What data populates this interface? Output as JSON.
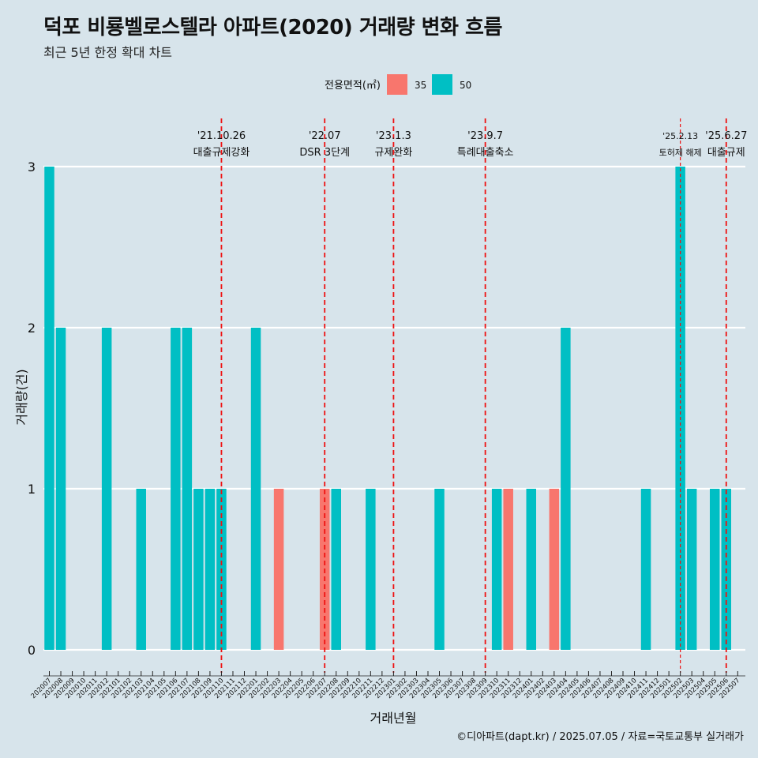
{
  "title": "덕포 비룡벨로스텔라 아파트(2020) 거래량 변화 흐름",
  "subtitle": "최근 5년 한정 확대 차트",
  "caption": "©디아파트(dapt.kr) / 2025.07.05 / 자료=국토교통부 실거래가",
  "colors": {
    "s35": "#f8766d",
    "s50": "#00bfc4",
    "event_line": "#ee1111",
    "background": "#d7e4eb",
    "grid": "#ffffff"
  },
  "chart_data": {
    "type": "bar",
    "stacked": true,
    "xlabel": "거래년월",
    "ylabel": "거래량(건)",
    "ylim": [
      0,
      3
    ],
    "yticks": [
      0,
      1,
      2,
      3
    ],
    "grid": true,
    "legend": {
      "title": "전용면적(㎡)",
      "position": "top"
    },
    "categories": [
      "202007",
      "202008",
      "202009",
      "202010",
      "202011",
      "202012",
      "202101",
      "202102",
      "202103",
      "202104",
      "202105",
      "202106",
      "202107",
      "202108",
      "202109",
      "202110",
      "202111",
      "202112",
      "202201",
      "202202",
      "202203",
      "202204",
      "202205",
      "202206",
      "202207",
      "202208",
      "202209",
      "202210",
      "202211",
      "202212",
      "202301",
      "202302",
      "202303",
      "202304",
      "202305",
      "202306",
      "202307",
      "202308",
      "202309",
      "202310",
      "202311",
      "202312",
      "202401",
      "202402",
      "202403",
      "202404",
      "202405",
      "202406",
      "202407",
      "202408",
      "202409",
      "202410",
      "202411",
      "202412",
      "202501",
      "202502",
      "202503",
      "202504",
      "202505",
      "202506",
      "202507"
    ],
    "series": [
      {
        "name": "35",
        "color": "#f8766d",
        "values": [
          0,
          0,
          0,
          0,
          0,
          0,
          0,
          0,
          0,
          0,
          0,
          0,
          0,
          0,
          0,
          0,
          0,
          0,
          0,
          0,
          1,
          0,
          0,
          0,
          1,
          0,
          0,
          0,
          0,
          0,
          0,
          0,
          0,
          0,
          0,
          0,
          0,
          0,
          0,
          0,
          1,
          0,
          0,
          0,
          1,
          0,
          0,
          0,
          0,
          0,
          0,
          0,
          0,
          0,
          0,
          0,
          0,
          0,
          0,
          0,
          0
        ]
      },
      {
        "name": "50",
        "color": "#00bfc4",
        "values": [
          3,
          2,
          0,
          0,
          0,
          2,
          0,
          0,
          1,
          0,
          0,
          2,
          2,
          1,
          1,
          1,
          0,
          0,
          2,
          0,
          0,
          0,
          0,
          0,
          0,
          1,
          0,
          0,
          1,
          0,
          0,
          0,
          0,
          0,
          1,
          0,
          0,
          0,
          0,
          1,
          0,
          0,
          1,
          0,
          0,
          2,
          0,
          0,
          0,
          0,
          0,
          0,
          1,
          0,
          0,
          3,
          1,
          0,
          1,
          1,
          0
        ]
      }
    ],
    "events": [
      {
        "date": "'21.10.26",
        "label": "대출규제강화",
        "category": "202110"
      },
      {
        "date": "'22.07",
        "label": "DSR 3단계",
        "category": "202207"
      },
      {
        "date": "'23.1.3",
        "label": "규제완화",
        "category": "202301"
      },
      {
        "date": "'23.9.7",
        "label": "특례대출축소",
        "category": "202309"
      },
      {
        "date": "'25.2.13",
        "label": "토허제 해제",
        "category": "202502"
      },
      {
        "date": "'25.6.27",
        "label": "대출규제",
        "category": "202506"
      }
    ]
  }
}
